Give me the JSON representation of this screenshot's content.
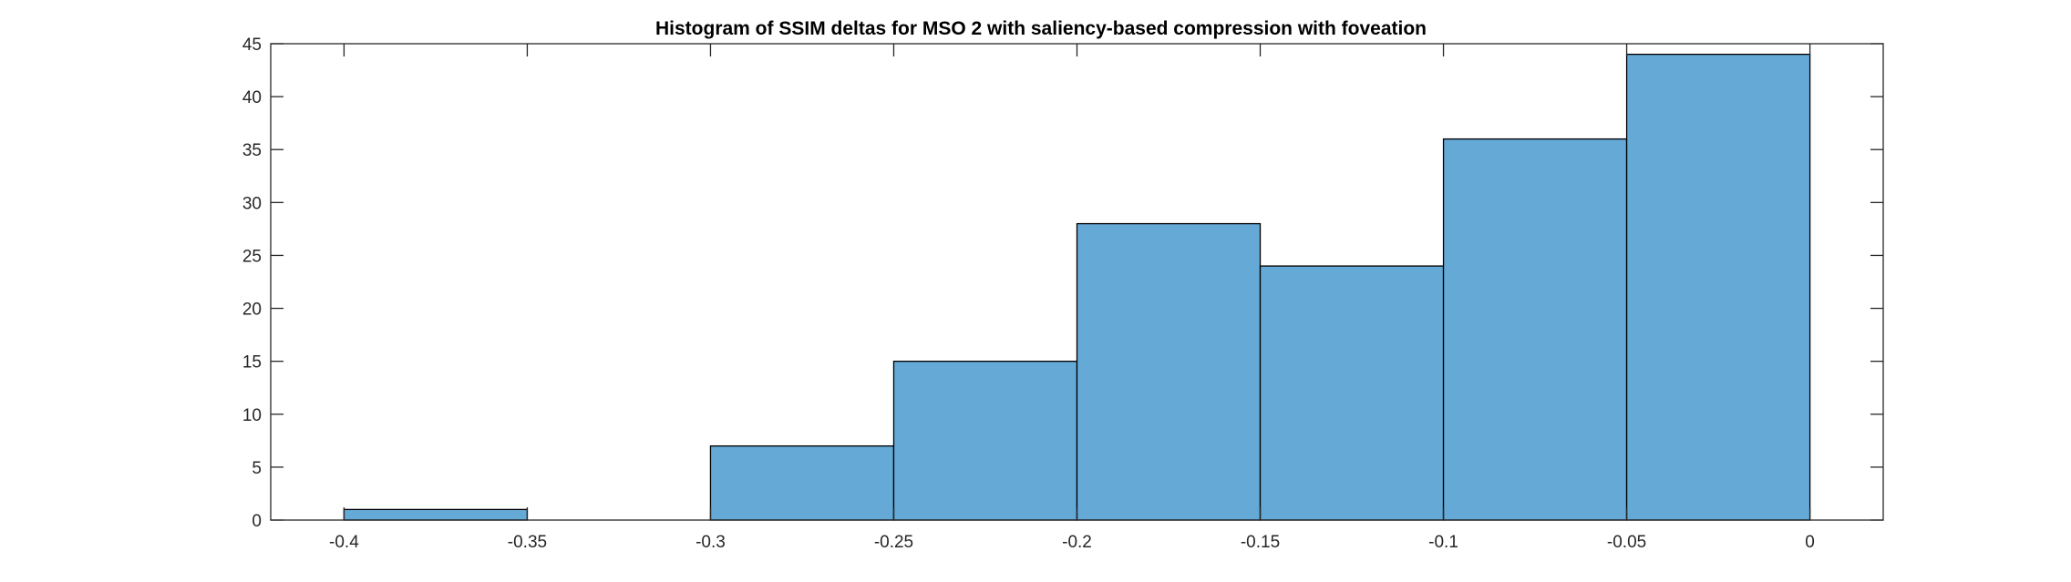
{
  "chart_data": {
    "type": "bar",
    "title": "Histogram of SSIM deltas for MSO 2 with saliency-based compression with foveation",
    "xlabel": "",
    "ylabel": "",
    "bin_edges": [
      -0.4,
      -0.35,
      -0.3,
      -0.25,
      -0.2,
      -0.15,
      -0.1,
      -0.05,
      0
    ],
    "values": [
      1,
      0,
      7,
      15,
      28,
      24,
      36,
      44
    ],
    "xlim": [
      -0.42,
      0.02
    ],
    "ylim": [
      0,
      45
    ],
    "x_ticks": [
      -0.4,
      -0.35,
      -0.3,
      -0.25,
      -0.2,
      -0.15,
      -0.1,
      -0.05,
      0
    ],
    "x_tick_labels": [
      "-0.4",
      "-0.35",
      "-0.3",
      "-0.25",
      "-0.2",
      "-0.15",
      "-0.1",
      "-0.05",
      "0"
    ],
    "y_ticks": [
      0,
      5,
      10,
      15,
      20,
      25,
      30,
      35,
      40,
      45
    ],
    "y_tick_labels": [
      "0",
      "5",
      "10",
      "15",
      "20",
      "25",
      "30",
      "35",
      "40",
      "45"
    ],
    "grid": false,
    "legend": "none",
    "bar_color": "#65A9D7",
    "bar_edge_color": "#000000",
    "axis_color": "#262626"
  }
}
